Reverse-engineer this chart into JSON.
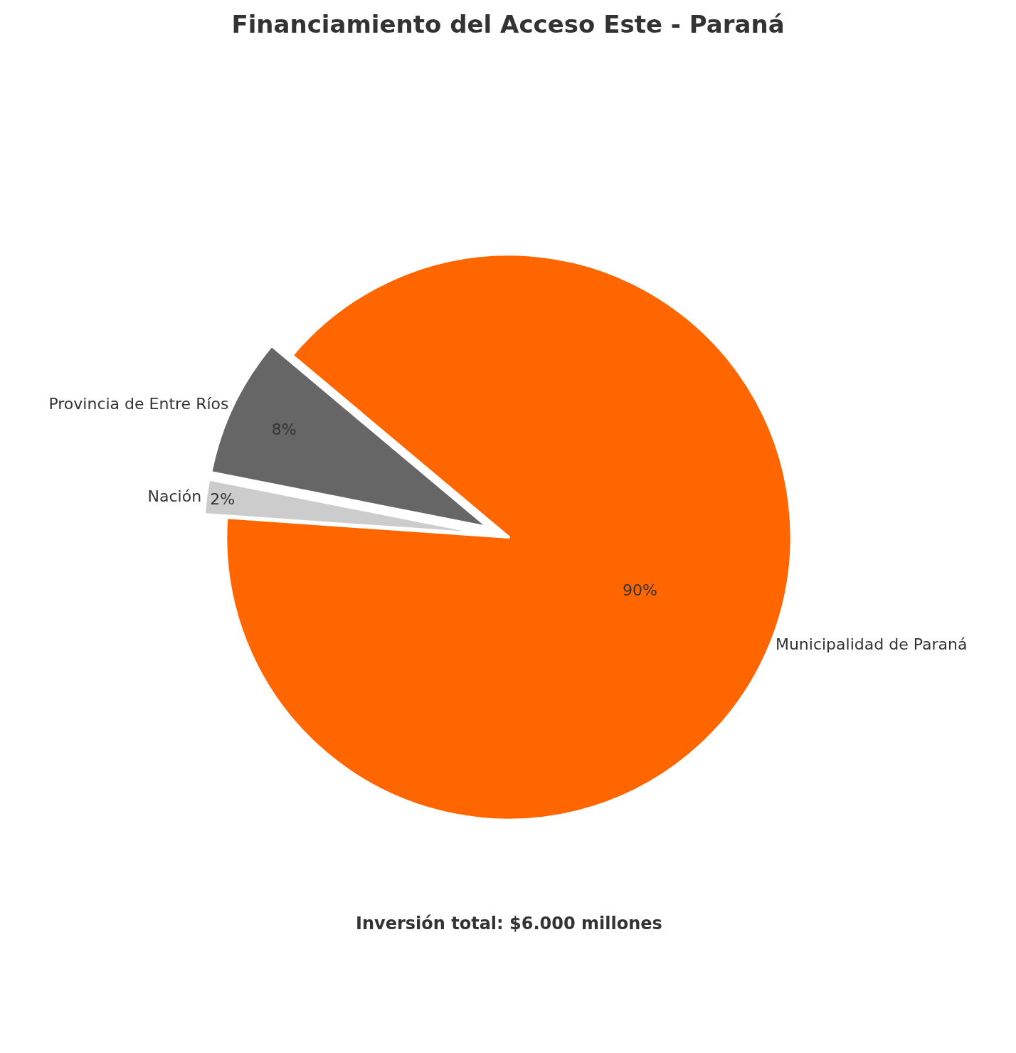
{
  "chart_data": {
    "type": "pie",
    "title": "Financiamiento del Acceso Este - Paraná",
    "categories": [
      "Municipalidad de Paraná",
      "Provincia de Entre Ríos",
      "Nación"
    ],
    "values": [
      90,
      8,
      2
    ],
    "value_labels": [
      "90%",
      "8%",
      "2%"
    ],
    "colors": [
      "#ff6600",
      "#666666",
      "#cccccc"
    ],
    "annotations": [
      "Inversión total: $6.000 millones"
    ],
    "legend": false
  }
}
